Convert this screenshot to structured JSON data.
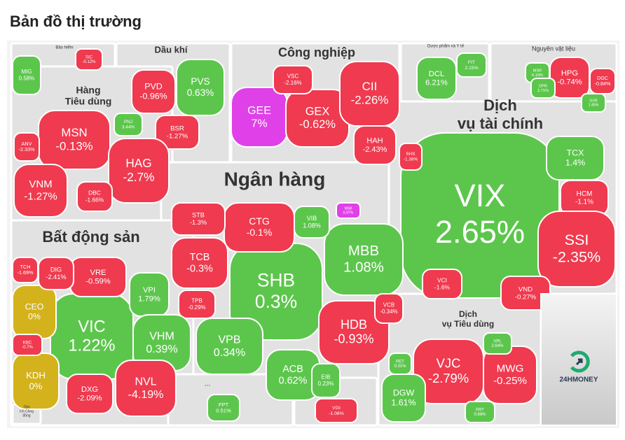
{
  "title": "Bản đồ thị trường",
  "brand": "24HMONEY",
  "sectors": [
    {
      "name": [
        "Bảo hiểm"
      ],
      "stocks": [
        {
          "ticker": "MIG",
          "change": "0.58%",
          "color": "#5cc64c"
        },
        {
          "ticker": "SIC",
          "change": "-0.12%",
          "color": "#ef3a4f"
        }
      ]
    },
    {
      "name": [
        "Dầu khí"
      ],
      "stocks": [
        {
          "ticker": "PVD",
          "change": "-0.96%",
          "color": "#ef3a4f"
        },
        {
          "ticker": "PVS",
          "change": "0.63%",
          "color": "#5cc64c"
        },
        {
          "ticker": "BSR",
          "change": "-1.27%",
          "color": "#ef3a4f"
        }
      ]
    },
    {
      "name": [
        "Công nghiệp"
      ],
      "stocks": [
        {
          "ticker": "GEE",
          "change": "7%",
          "color": "#e040e8"
        },
        {
          "ticker": "GEX",
          "change": "-0.62%",
          "color": "#ef3a4f"
        },
        {
          "ticker": "CII",
          "change": "-2.26%",
          "color": "#ef3a4f"
        },
        {
          "ticker": "VSC",
          "change": "-2.16%",
          "color": "#ef3a4f"
        },
        {
          "ticker": "HAH",
          "change": "-2.43%",
          "color": "#ef3a4f"
        }
      ]
    },
    {
      "name": [
        "Dược phẩm và Y tế"
      ],
      "stocks": [
        {
          "ticker": "DCL",
          "change": "6.21%",
          "color": "#5cc64c"
        },
        {
          "ticker": "FIT",
          "change": "2.15%",
          "color": "#5cc64c"
        }
      ]
    },
    {
      "name": [
        "Nguyên vật liệu"
      ],
      "stocks": [
        {
          "ticker": "HPG",
          "change": "-0.74%",
          "color": "#ef3a4f"
        },
        {
          "ticker": "DGC",
          "change": "-0.84%",
          "color": "#ef3a4f"
        },
        {
          "ticker": "MSR",
          "change": "6.19%",
          "color": "#5cc64c"
        },
        {
          "ticker": "DPR",
          "change": "2.71%",
          "color": "#5cc64c"
        },
        {
          "ticker": "GVR",
          "change": "1.45%",
          "color": "#5cc64c"
        }
      ]
    },
    {
      "name": [
        "Hàng",
        "Tiêu dùng"
      ],
      "stocks": [
        {
          "ticker": "MSN",
          "change": "-0.13%",
          "color": "#ef3a4f"
        },
        {
          "ticker": "HAG",
          "change": "-2.7%",
          "color": "#ef3a4f"
        },
        {
          "ticker": "VNM",
          "change": "-1.27%",
          "color": "#ef3a4f"
        },
        {
          "ticker": "PNJ",
          "change": "3.44%",
          "color": "#5cc64c"
        },
        {
          "ticker": "ANV",
          "change": "-2.33%",
          "color": "#ef3a4f"
        },
        {
          "ticker": "DBC",
          "change": "-1.66%",
          "color": "#ef3a4f"
        }
      ]
    },
    {
      "name": [
        "Dịch",
        "vụ tài chính"
      ],
      "stocks": [
        {
          "ticker": "VIX",
          "change": "2.65%",
          "color": "#5cc64c"
        },
        {
          "ticker": "TCX",
          "change": "1.4%",
          "color": "#5cc64c"
        },
        {
          "ticker": "HCM",
          "change": "-1.1%",
          "color": "#ef3a4f"
        },
        {
          "ticker": "SSI",
          "change": "-2.35%",
          "color": "#ef3a4f"
        },
        {
          "ticker": "VND",
          "change": "-0.27%",
          "color": "#ef3a4f"
        },
        {
          "ticker": "SHS",
          "change": "-1.38%",
          "color": "#ef3a4f"
        },
        {
          "ticker": "VCI",
          "change": "-1.6%",
          "color": "#ef3a4f"
        }
      ]
    },
    {
      "name": [
        "Ngân hàng"
      ],
      "stocks": [
        {
          "ticker": "SHB",
          "change": "0.3%",
          "color": "#5cc64c"
        },
        {
          "ticker": "MBB",
          "change": "1.08%",
          "color": "#5cc64c"
        },
        {
          "ticker": "CTG",
          "change": "-0.1%",
          "color": "#ef3a4f"
        },
        {
          "ticker": "STB",
          "change": "-1.3%",
          "color": "#ef3a4f"
        },
        {
          "ticker": "TCB",
          "change": "-0.3%",
          "color": "#ef3a4f"
        },
        {
          "ticker": "VPB",
          "change": "0.34%",
          "color": "#5cc64c"
        },
        {
          "ticker": "ACB",
          "change": "0.62%",
          "color": "#5cc64c"
        },
        {
          "ticker": "HDB",
          "change": "-0.93%",
          "color": "#ef3a4f"
        },
        {
          "ticker": "VIB",
          "change": "1.08%",
          "color": "#5cc64c"
        },
        {
          "ticker": "MSB",
          "change": "6.97%",
          "color": "#e040e8"
        },
        {
          "ticker": "VCB",
          "change": "-0.34%",
          "color": "#ef3a4f"
        },
        {
          "ticker": "TPB",
          "change": "-0.29%",
          "color": "#ef3a4f"
        },
        {
          "ticker": "EIB",
          "change": "0.23%",
          "color": "#5cc64c"
        }
      ]
    },
    {
      "name": [
        "Bất động sản"
      ],
      "stocks": [
        {
          "ticker": "VIC",
          "change": "1.22%",
          "color": "#5cc64c"
        },
        {
          "ticker": "VRE",
          "change": "-0.59%",
          "color": "#ef3a4f"
        },
        {
          "ticker": "VPI",
          "change": "1.79%",
          "color": "#5cc64c"
        },
        {
          "ticker": "VHM",
          "change": "0.39%",
          "color": "#5cc64c"
        },
        {
          "ticker": "NVL",
          "change": "-4.19%",
          "color": "#ef3a4f"
        },
        {
          "ticker": "DXG",
          "change": "-2.09%",
          "color": "#ef3a4f"
        },
        {
          "ticker": "KDH",
          "change": "0%",
          "color": "#d4b21c"
        },
        {
          "ticker": "CEO",
          "change": "0%",
          "color": "#d4b21c"
        },
        {
          "ticker": "DIG",
          "change": "-2.41%",
          "color": "#ef3a4f"
        },
        {
          "ticker": "TCH",
          "change": "-1.69%",
          "color": "#ef3a4f"
        },
        {
          "ticker": "KBC",
          "change": "-0.7%",
          "color": "#ef3a4f"
        }
      ]
    },
    {
      "name": [
        "Dịch",
        "vụ Tiêu dùng"
      ],
      "stocks": [
        {
          "ticker": "VJC",
          "change": "-2.79%",
          "color": "#ef3a4f"
        },
        {
          "ticker": "MWG",
          "change": "-0.25%",
          "color": "#ef3a4f"
        },
        {
          "ticker": "DGW",
          "change": "1.61%",
          "color": "#5cc64c"
        },
        {
          "ticker": "VPL",
          "change": "2.64%",
          "color": "#5cc64c"
        },
        {
          "ticker": "FRT",
          "change": "0.68%",
          "color": "#5cc64c"
        },
        {
          "ticker": "PET",
          "change": "0.31%",
          "color": "#5cc64c"
        }
      ]
    },
    {
      "name": [
        "..."
      ],
      "stocks": [
        {
          "ticker": "FPT",
          "change": "0.51%",
          "color": "#5cc64c"
        }
      ]
    },
    {
      "name": [
        "Tiện",
        "ích Công",
        "đồng"
      ],
      "stocks": []
    },
    {
      "stocks": [
        {
          "ticker": "VGI",
          "change": "-1.08%",
          "color": "#ef3a4f"
        }
      ]
    }
  ]
}
